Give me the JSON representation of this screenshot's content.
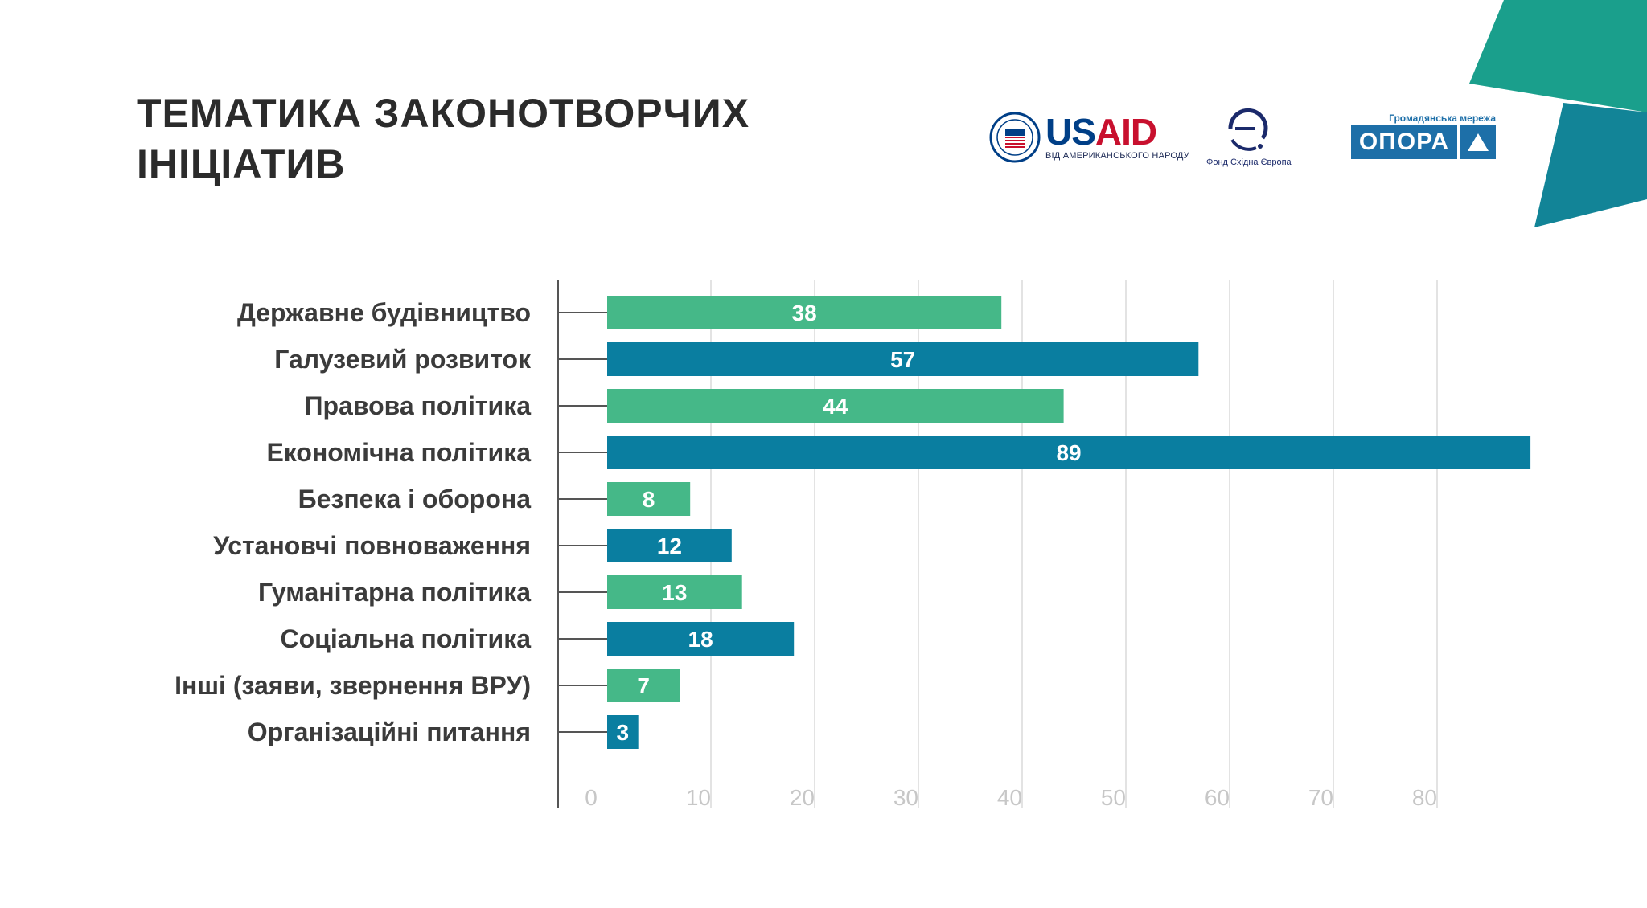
{
  "title": {
    "line1": "ТЕМАТИКА ЗАКОНОТВОРЧИХ",
    "line2": "ІНІЦІАТИВ"
  },
  "colors": {
    "green": "#45b888",
    "blue": "#0a7ea0",
    "accent_teal": "#1a9f8c",
    "accent_dark": "#128497"
  },
  "logos": {
    "usaid": {
      "word_us": "US",
      "word_aid": "AID",
      "subtitle": "ВІД АМЕРИКАНСЬКОГО НАРОДУ",
      "seal_icon": "usaid-seal-icon"
    },
    "east_europe": {
      "caption": "Фонд Східна Європа",
      "mark_icon": "east-europe-foundation-icon"
    },
    "opora": {
      "top": "Громадянська мережа",
      "name": "ОПОРА",
      "mark_icon": "triangle-icon"
    }
  },
  "chart_data": {
    "type": "bar",
    "orientation": "horizontal",
    "title": "ТЕМАТИКА ЗАКОНОТВОРЧИХ ІНІЦІАТИВ",
    "xlabel": "",
    "ylabel": "",
    "grid": true,
    "xlim": [
      0,
      88
    ],
    "xticks": [
      0,
      10,
      20,
      30,
      40,
      50,
      60,
      70,
      80
    ],
    "categories": [
      "Державне будівництво",
      "Галузевий розвиток",
      "Правова політика",
      "Економічна політика",
      "Безпека і оборона",
      "Установчі повноваження",
      "Гуманітарна політика",
      "Соціальна політика",
      "Інші (заяви, звернення ВРУ)",
      "Організаційні питання"
    ],
    "values": [
      38,
      57,
      44,
      89,
      8,
      12,
      13,
      18,
      7,
      3
    ],
    "bar_colors": [
      "#45b888",
      "#0a7ea0",
      "#45b888",
      "#0a7ea0",
      "#45b888",
      "#0a7ea0",
      "#45b888",
      "#0a7ea0",
      "#45b888",
      "#0a7ea0"
    ]
  }
}
